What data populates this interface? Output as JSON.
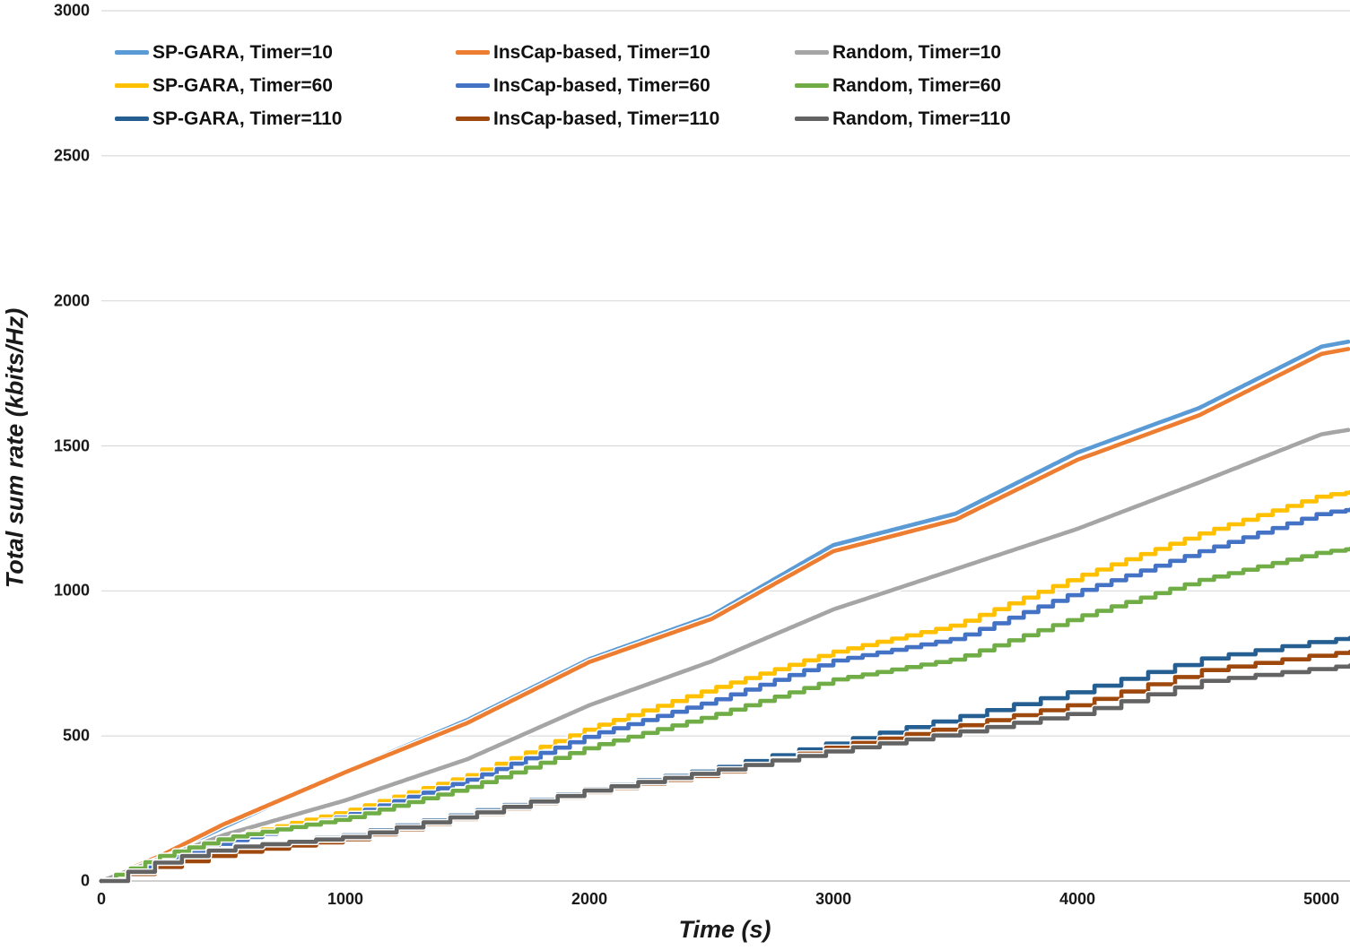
{
  "chart_data": {
    "type": "line",
    "title": "",
    "xlabel": "Time (s)",
    "ylabel": "Total sum rate (kbits/Hz)",
    "xlim": [
      0,
      5117
    ],
    "ylim": [
      0,
      3000
    ],
    "x_ticks": [
      0,
      1000,
      2000,
      3000,
      4000,
      5000
    ],
    "y_ticks": [
      0,
      500,
      1000,
      1500,
      2000,
      2500,
      3000
    ],
    "grid": "horizontal",
    "grid_color": "#d9d9d9",
    "axis_line_color": "#c0c0c0",
    "legend_position": "top-left-inside-3-columns",
    "anchor_times": [
      0,
      250,
      500,
      1000,
      1500,
      2000,
      2500,
      3000,
      3500,
      4000,
      4500,
      5000,
      5117
    ],
    "series": [
      {
        "name": "SP-GARA, Timer=10",
        "color": "#5B9BD5",
        "timer": 10,
        "values": [
          0,
          85,
          185,
          378,
          555,
          765,
          915,
          1158,
          1266,
          1477,
          1631,
          1842,
          1860
        ]
      },
      {
        "name": "InsCap-based, Timer=10",
        "color": "#ED7D31",
        "timer": 10,
        "values": [
          0,
          90,
          195,
          375,
          545,
          755,
          903,
          1137,
          1245,
          1452,
          1606,
          1817,
          1835
        ]
      },
      {
        "name": "Random, Timer=10",
        "color": "#A5A5A5",
        "timer": 10,
        "values": [
          0,
          80,
          158,
          278,
          420,
          606,
          757,
          936,
          1075,
          1214,
          1374,
          1540,
          1556
        ]
      },
      {
        "name": "SP-GARA, Timer=60",
        "color": "#FFC000",
        "timer": 60,
        "values": [
          0,
          75,
          148,
          241,
          365,
          528,
          664,
          791,
          884,
          1050,
          1198,
          1330,
          1340
        ]
      },
      {
        "name": "InsCap-based, Timer=60",
        "color": "#4472C4",
        "timer": 60,
        "values": [
          0,
          70,
          133,
          226,
          349,
          503,
          621,
          760,
          837,
          998,
          1137,
          1270,
          1280
        ]
      },
      {
        "name": "Random, Timer=60",
        "color": "#70AD47",
        "timer": 60,
        "values": [
          0,
          90,
          148,
          216,
          324,
          463,
          571,
          695,
          766,
          911,
          1038,
          1135,
          1145
        ]
      },
      {
        "name": "SP-GARA, Timer=110",
        "color": "#255E91",
        "timer": 110,
        "values": [
          0,
          70,
          117,
          158,
          237,
          320,
          388,
          479,
          565,
          658,
          766,
          830,
          838
        ]
      },
      {
        "name": "InsCap-based, Timer=110",
        "color": "#9E480E",
        "timer": 110,
        "values": [
          0,
          55,
          96,
          145,
          225,
          310,
          372,
          465,
          534,
          612,
          726,
          782,
          790
        ]
      },
      {
        "name": "Random, Timer=110",
        "color": "#636363",
        "timer": 110,
        "values": [
          0,
          72,
          115,
          152,
          230,
          315,
          380,
          451,
          513,
          581,
          689,
          735,
          743
        ]
      }
    ]
  },
  "layout_text": {
    "xlabel": "Time (s)",
    "ylabel": "Total sum rate (kbits/Hz)"
  }
}
